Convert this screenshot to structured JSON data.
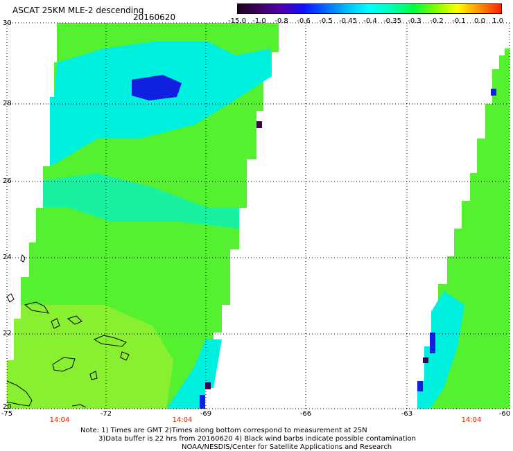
{
  "header": {
    "title": "ASCAT 25KM MLE-2 descending",
    "date": "20160620"
  },
  "colorbar": {
    "tick_labels": [
      "-15.0",
      "-1.0",
      "-0.8",
      "-0.6",
      "-0.5",
      "-0.45",
      "-0.4",
      "-0.35",
      "-0.3",
      "-0.2",
      "-0.1",
      "0.0",
      "1.0"
    ],
    "colors": [
      "#200020",
      "#400060",
      "#5000b0",
      "#1010ff",
      "#0068ff",
      "#00c0ff",
      "#00ffff",
      "#00ffb0",
      "#00ff40",
      "#80ff00",
      "#ffff00",
      "#ff9000",
      "#ff2000"
    ]
  },
  "map": {
    "lon_labels": [
      "-75",
      "-72",
      "-69",
      "-66",
      "-63",
      "-60"
    ],
    "lat_labels": [
      "30",
      "28",
      "26",
      "24",
      "22",
      "20"
    ],
    "time_labels": [
      "14:04",
      "14:04",
      "14:04"
    ],
    "colors": {
      "swath_green": "#55f030",
      "swath_lightgreen": "#88f030",
      "swath_cyan": "#00f0e0",
      "swath_blue": "#1020e0",
      "swath_darkpurple": "#400050",
      "coastline": "#000000",
      "time_label": "#cc2200"
    }
  },
  "notes": {
    "line1": "Note: 1) Times are GMT 2)Times along bottom correspond to measurement at 25N",
    "line2": "3)Data buffer is 22 hrs from 20160620 4) Black wind barbs indicate possible contamination",
    "line3": "NOAA/NESDIS/Center for Satellite Applications and Research"
  }
}
